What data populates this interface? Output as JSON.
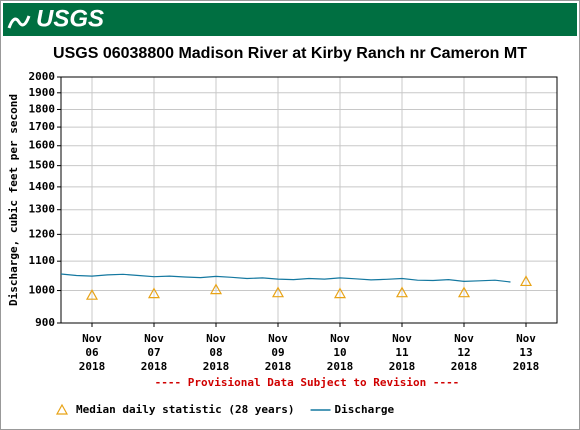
{
  "header": {
    "logo": "USGS"
  },
  "chart_data": {
    "type": "line",
    "title": "USGS 06038800 Madison River at Kirby Ranch nr Cameron MT",
    "y_label": "Discharge, cubic feet per second",
    "note": "---- Provisional Data Subject to Revision ----",
    "log_scale_y": true,
    "grid": true,
    "ylim": [
      900,
      2000
    ],
    "yticks": [
      900,
      1000,
      1100,
      1200,
      1300,
      1400,
      1500,
      1600,
      1700,
      1800,
      1900,
      2000
    ],
    "xlim": [
      5.5,
      13.5
    ],
    "xticks": [
      {
        "value": 6,
        "label": "Nov 06 2018"
      },
      {
        "value": 7,
        "label": "Nov 07 2018"
      },
      {
        "value": 8,
        "label": "Nov 08 2018"
      },
      {
        "value": 9,
        "label": "Nov 09 2018"
      },
      {
        "value": 10,
        "label": "Nov 10 2018"
      },
      {
        "value": 11,
        "label": "Nov 11 2018"
      },
      {
        "value": 12,
        "label": "Nov 12 2018"
      },
      {
        "value": 13,
        "label": "Nov 13 2018"
      }
    ],
    "series": [
      {
        "name": "Median daily statistic (28 years)",
        "color": "#e8a317",
        "marker": "triangle",
        "x": [
          6,
          7,
          8,
          9,
          10,
          11,
          12,
          13
        ],
        "values": [
          985,
          990,
          1003,
          993,
          990,
          993,
          993,
          1030
        ]
      },
      {
        "name": "Discharge",
        "color": "#1478a0",
        "marker": "line",
        "x": [
          5.5,
          5.75,
          6,
          6.25,
          6.5,
          6.75,
          7,
          7.25,
          7.5,
          7.75,
          8,
          8.25,
          8.5,
          8.75,
          9,
          9.25,
          9.5,
          9.75,
          10,
          10.25,
          10.5,
          10.75,
          11,
          11.25,
          11.5,
          11.75,
          12,
          12.25,
          12.5,
          12.75
        ],
        "values": [
          1055,
          1050,
          1048,
          1052,
          1054,
          1050,
          1046,
          1048,
          1045,
          1043,
          1047,
          1044,
          1040,
          1042,
          1038,
          1036,
          1040,
          1038,
          1042,
          1039,
          1035,
          1037,
          1040,
          1034,
          1033,
          1036,
          1030,
          1032,
          1034,
          1028
        ]
      }
    ]
  }
}
